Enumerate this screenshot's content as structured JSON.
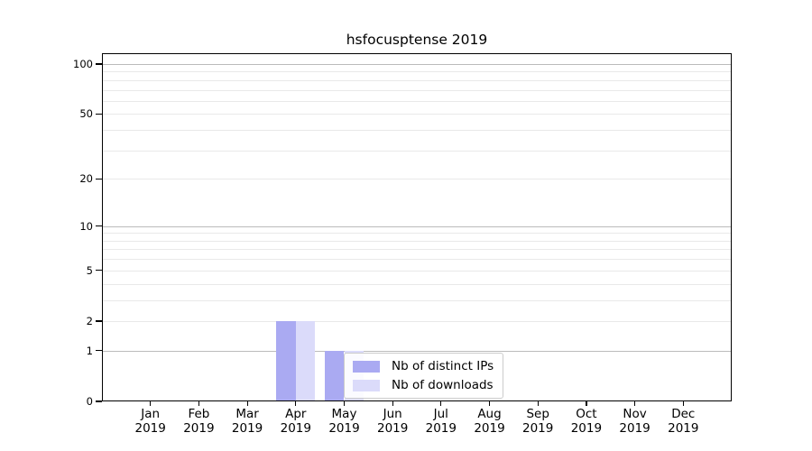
{
  "chart_data": {
    "type": "bar",
    "title": "hsfocusptense 2019",
    "categories": [
      "Jan",
      "Feb",
      "Mar",
      "Apr",
      "May",
      "Jun",
      "Jul",
      "Aug",
      "Sep",
      "Oct",
      "Nov",
      "Dec"
    ],
    "x_tick_year": "2019",
    "series": [
      {
        "name": "Nb of distinct IPs",
        "color": "#aaaaf2",
        "values": [
          0,
          0,
          0,
          2,
          1,
          0,
          0,
          0,
          0,
          0,
          0,
          0
        ]
      },
      {
        "name": "Nb of downloads",
        "color": "#dbdbfa",
        "values": [
          0,
          0,
          0,
          2,
          1,
          0,
          0,
          0,
          0,
          0,
          0,
          0
        ]
      }
    ],
    "y_ticks": [
      0,
      1,
      2,
      5,
      10,
      20,
      50,
      100
    ],
    "y_scale": "log1p",
    "y_max": 116,
    "ylim": [
      0,
      116
    ],
    "grid": {
      "major_values": [
        1,
        10,
        100
      ],
      "minor_values": [
        2,
        3,
        4,
        5,
        6,
        7,
        8,
        9,
        20,
        30,
        40,
        50,
        60,
        70,
        80,
        90
      ],
      "major_color": "#bbbbbb",
      "minor_color": "#e9e9e9"
    },
    "legend_position": "lower center",
    "axis_color": "#000000",
    "background_color": "#ffffff"
  }
}
